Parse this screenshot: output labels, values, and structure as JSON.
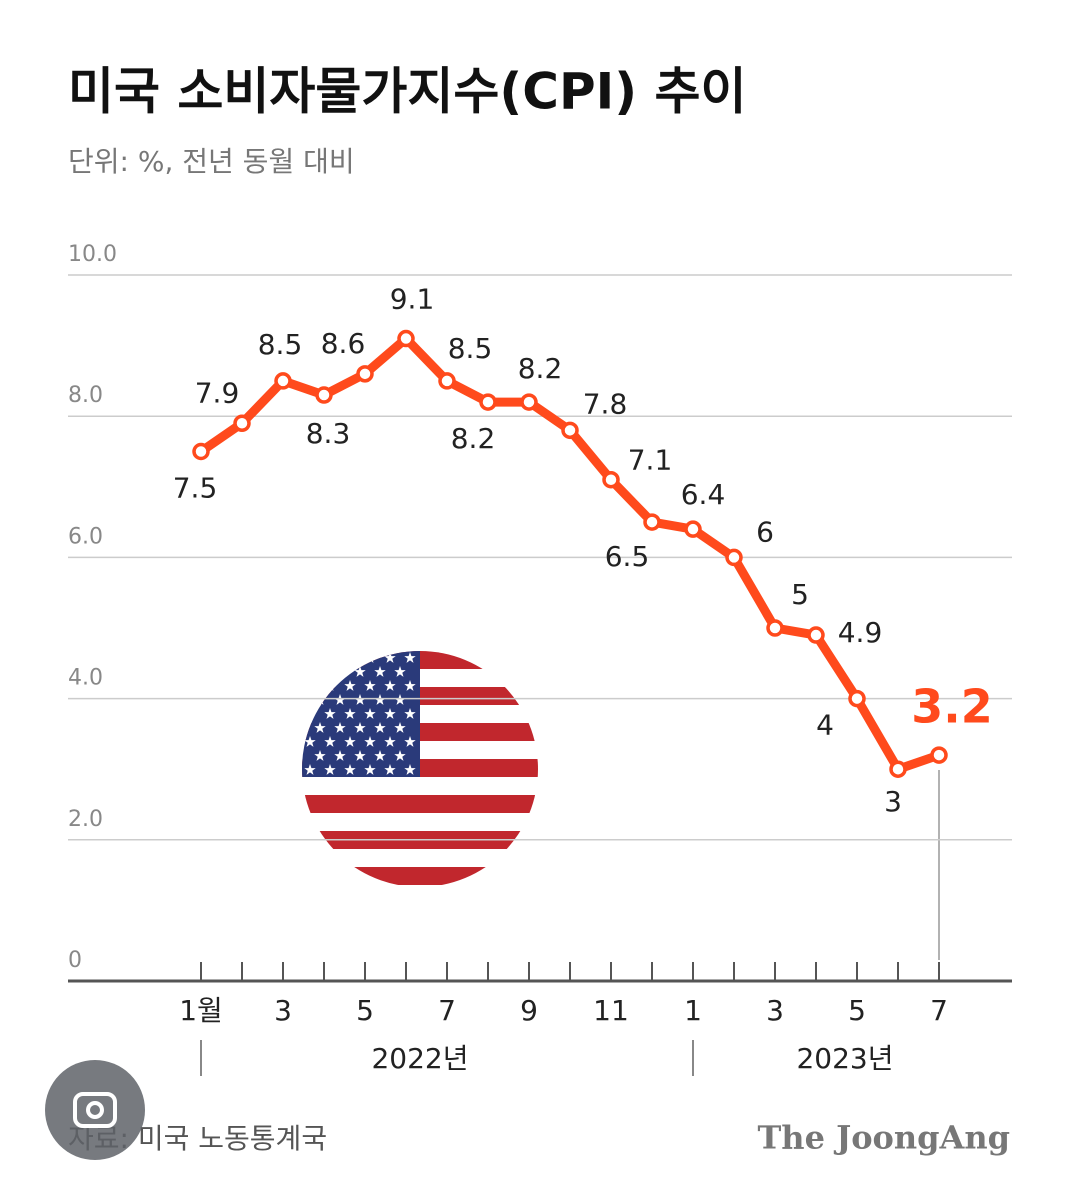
{
  "chart_data": {
    "type": "line",
    "title": "미국 소비자물가지수(CPI) 추이",
    "subtitle": "단위: %, 전년 동월 대비",
    "categories": [
      "1월",
      null,
      "3",
      null,
      "5",
      null,
      "7",
      null,
      "9",
      null,
      "11",
      null,
      "1",
      null,
      "3",
      null,
      "5",
      null,
      "7"
    ],
    "year_labels": [
      "2022년",
      "2023년"
    ],
    "series": [
      {
        "name": "CPI",
        "color": "#ff4a1c",
        "values": [
          7.5,
          7.9,
          8.5,
          8.3,
          8.6,
          9.1,
          8.5,
          8.2,
          8.2,
          7.8,
          7.1,
          6.5,
          6.4,
          6.0,
          5.0,
          4.9,
          4.0,
          3.0,
          3.2
        ]
      }
    ],
    "ylim": [
      0,
      10
    ],
    "yticks": [
      0,
      {
        "value": 2,
        "label": "2.0"
      },
      {
        "value": 4,
        "label": "4.0"
      },
      {
        "value": 6,
        "label": "6.0"
      },
      {
        "value": 8,
        "label": "8.0"
      },
      {
        "value": 10,
        "label": "10.0"
      }
    ],
    "grid": true,
    "source": "자료: 미국 노동통계국",
    "brand": "The JoongAng"
  }
}
